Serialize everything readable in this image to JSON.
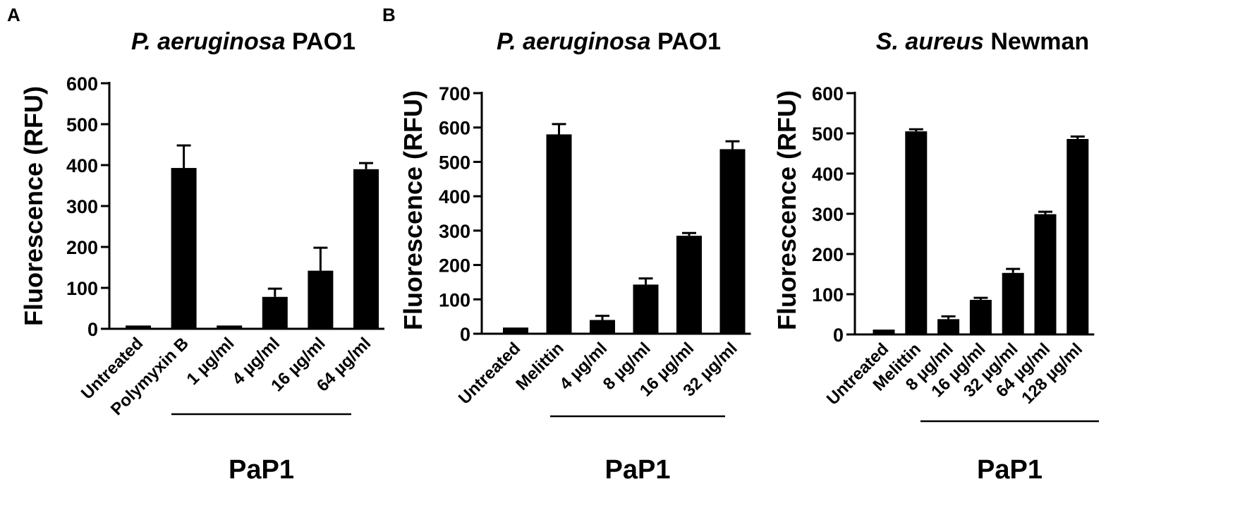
{
  "chart_data": [
    {
      "type": "bar",
      "panel_letter": "A",
      "title_italic": "P. aeruginosa",
      "title_rest": " PAO1",
      "ylabel": "Fluorescence (RFU)",
      "ylim": [
        0,
        600
      ],
      "yticks": [
        0,
        100,
        200,
        300,
        400,
        500,
        600
      ],
      "categories": [
        "Untreated",
        "Polymyxin B",
        "1 µg/ml",
        "4 µg/ml",
        "16 µg/ml",
        "64 µg/ml"
      ],
      "values": [
        8,
        393,
        8,
        78,
        142,
        390
      ],
      "errors": [
        0,
        55,
        0,
        20,
        56,
        15
      ],
      "group_label": "PaP1",
      "group_start_index": 2,
      "color": "#000000"
    },
    {
      "type": "bar",
      "panel_letter": "B",
      "title_italic": "P. aeruginosa",
      "title_rest": " PAO1",
      "ylabel": "Fluorescence (RFU)",
      "ylim": [
        0,
        700
      ],
      "yticks": [
        0,
        100,
        200,
        300,
        400,
        500,
        600,
        700
      ],
      "categories": [
        "Untreated",
        "Melittin",
        "4 µg/ml",
        "8 µg/ml",
        "16 µg/ml",
        "32 µg/ml"
      ],
      "values": [
        18,
        580,
        40,
        143,
        285,
        537
      ],
      "errors": [
        0,
        30,
        12,
        18,
        8,
        23
      ],
      "group_label": "PaP1",
      "group_start_index": 2,
      "color": "#000000"
    },
    {
      "type": "bar",
      "panel_letter": "",
      "title_italic": "S. aureus",
      "title_rest": " Newman",
      "ylabel": "Fluorescence (RFU)",
      "ylim": [
        0,
        600
      ],
      "yticks": [
        0,
        100,
        200,
        300,
        400,
        500,
        600
      ],
      "categories": [
        "Untreated",
        "Melittin",
        "8 µg/ml",
        "16 µg/ml",
        "32 µg/ml",
        "64 µg/ml",
        "128 µg/ml"
      ],
      "values": [
        12,
        505,
        38,
        86,
        153,
        299,
        486
      ],
      "errors": [
        0,
        5,
        7,
        5,
        10,
        6,
        6
      ],
      "group_label": "PaP1",
      "group_start_index": 2,
      "color": "#000000"
    }
  ]
}
